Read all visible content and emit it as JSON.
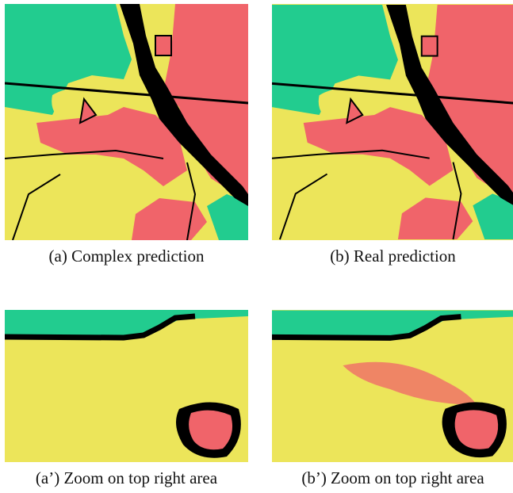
{
  "figure": {
    "panels": [
      {
        "id": "a",
        "caption": "(a) Complex prediction"
      },
      {
        "id": "b",
        "caption": "(b) Real prediction"
      },
      {
        "id": "a_zoom",
        "caption": "(a’) Zoom on top right area"
      },
      {
        "id": "b_zoom",
        "caption": "(b’) Zoom on top right area"
      }
    ]
  },
  "colors": {
    "yellow_class": "#ece55a",
    "green_class": "#22cc8f",
    "red_class": "#f0646a",
    "black_class": "#000000"
  }
}
